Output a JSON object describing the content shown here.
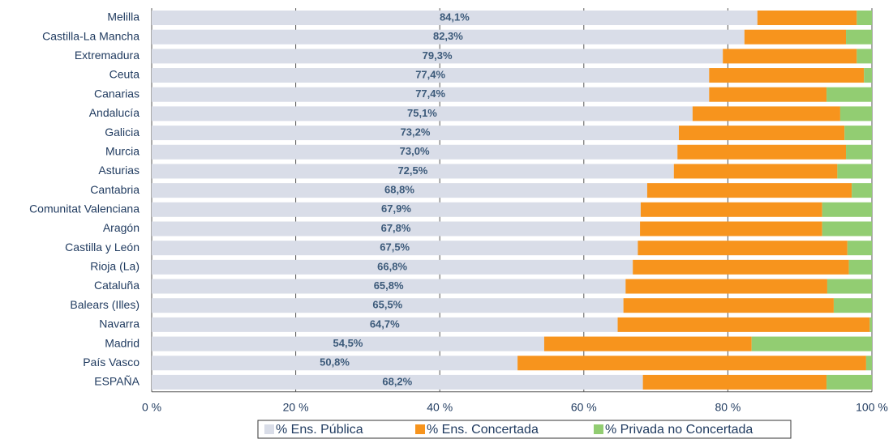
{
  "chart_data": {
    "type": "stacked_barh",
    "categories": [
      "Melilla",
      "Castilla-La Mancha",
      "Extremadura",
      "Ceuta",
      "Canarias",
      "Andalucía",
      "Galicia",
      "Murcia",
      "Asturias",
      "Cantabria",
      "Comunitat Valenciana",
      "Aragón",
      "Castilla y León",
      "Rioja (La)",
      "Cataluña",
      "Balears (Illes)",
      "Navarra",
      "Madrid",
      "País Vasco",
      "ESPAÑA"
    ],
    "series": [
      {
        "name": "% Ens. Pública",
        "color": "#d9dde8",
        "values": [
          84.1,
          82.3,
          79.3,
          77.4,
          77.4,
          75.1,
          73.2,
          73.0,
          72.5,
          68.8,
          67.9,
          67.8,
          67.5,
          66.8,
          65.8,
          65.5,
          64.7,
          54.5,
          50.8,
          68.2
        ],
        "value_labels": [
          "84,1%",
          "82,3%",
          "79,3%",
          "77,4%",
          "77,4%",
          "75,1%",
          "73,2%",
          "73,0%",
          "72,5%",
          "68,8%",
          "67,9%",
          "67,8%",
          "67,5%",
          "66,8%",
          "65,8%",
          "65,5%",
          "64,7%",
          "54,5%",
          "50,8%",
          "68,2%"
        ]
      },
      {
        "name": "% Ens. Concertada",
        "color": "#f7941d",
        "values": [
          13.8,
          14.1,
          18.6,
          21.5,
          16.3,
          20.5,
          23.0,
          23.4,
          22.7,
          28.4,
          25.2,
          25.3,
          29.1,
          30.0,
          28.0,
          29.2,
          35.0,
          28.8,
          48.4,
          25.5
        ]
      },
      {
        "name": "% Privada no Concertada",
        "color": "#92cd72",
        "values": [
          2.1,
          3.6,
          2.1,
          1.1,
          6.3,
          4.4,
          3.8,
          3.6,
          4.8,
          2.8,
          6.9,
          6.9,
          3.4,
          3.2,
          6.2,
          5.3,
          0.3,
          16.7,
          0.8,
          6.3
        ]
      }
    ],
    "xlim": [
      0,
      100
    ],
    "xticks": [
      {
        "value": 0,
        "label": "0 %"
      },
      {
        "value": 20,
        "label": "20 %"
      },
      {
        "value": 40,
        "label": "40 %"
      },
      {
        "value": 60,
        "label": "60 %"
      },
      {
        "value": 80,
        "label": "80 %"
      },
      {
        "value": 100,
        "label": "100 %"
      }
    ],
    "grid": true,
    "legend": "bottom"
  }
}
